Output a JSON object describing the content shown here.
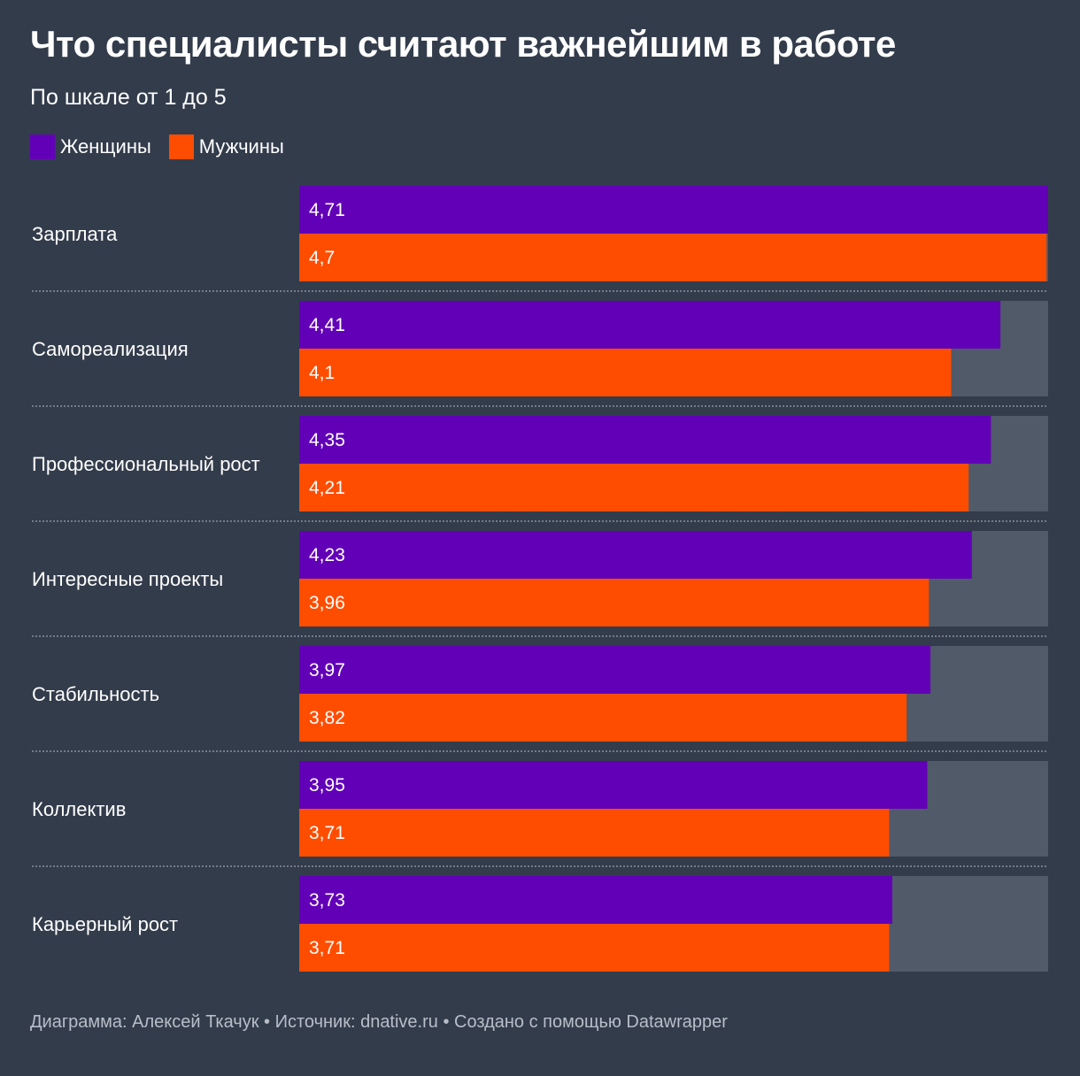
{
  "chart_data": {
    "type": "bar",
    "orientation": "horizontal",
    "title": "Что специалисты считают важнейшим в работе",
    "subtitle": "По шкале от 1 до 5",
    "categories": [
      "Зарплата",
      "Самореализация",
      "Профессиональный рост",
      "Интересные проекты",
      "Стабильность",
      "Коллектив",
      "Карьерный рост"
    ],
    "series": [
      {
        "name": "Женщины",
        "color": "#6200b8",
        "values": [
          4.71,
          4.41,
          4.35,
          4.23,
          3.97,
          3.95,
          3.73
        ],
        "labels": [
          "4,71",
          "4,41",
          "4,35",
          "4,23",
          "3,97",
          "3,95",
          "3,73"
        ]
      },
      {
        "name": "Мужчины",
        "color": "#ff4d00",
        "values": [
          4.7,
          4.1,
          4.21,
          3.96,
          3.82,
          3.71,
          3.71
        ],
        "labels": [
          "4,7",
          "4,1",
          "4,21",
          "3,96",
          "3,82",
          "3,71",
          "3,71"
        ]
      }
    ],
    "xlim": [
      0,
      4.71
    ],
    "legend_position": "top-left",
    "background_color": "#333c4b",
    "track_color": "#505a68"
  },
  "footer": "Диаграмма: Алексей Ткачук • Источник: dnative.ru • Создано с помощью Datawrapper"
}
